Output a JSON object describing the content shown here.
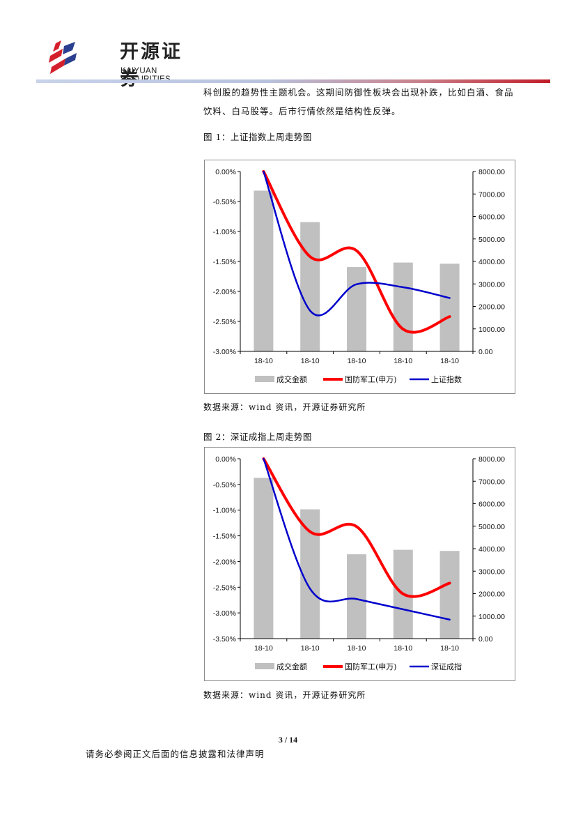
{
  "header": {
    "logo_cn": "开源证券",
    "logo_en": "KAIYUAN SECURITIES",
    "colors": {
      "logo_red": "#d4202c",
      "logo_blue": "#2a3f8f"
    }
  },
  "body": {
    "line1": "科创股的趋势性主题机会。这期间防御性板块会出现补跌，比如白酒、食品",
    "line2": "饮料、白马股等。后市行情依然是结构性反弹。"
  },
  "figure1": {
    "title": "图 1：上证指数上周走势图",
    "source": "数据来源：wind 资讯，开源证券研究所"
  },
  "figure2": {
    "title": "图 2：深证成指上周走势图",
    "source": "数据来源：wind 资讯，开源证券研究所"
  },
  "chart_data": [
    {
      "type": "bar",
      "categories": [
        "18-10",
        "18-10",
        "18-10",
        "18-10",
        "18-10"
      ],
      "y_left": {
        "min": -3.0,
        "max": 0.0,
        "step": 0.5,
        "ticks": [
          "0.00%",
          "-0.50%",
          "-1.00%",
          "-1.50%",
          "-2.00%",
          "-2.50%",
          "-3.00%"
        ]
      },
      "y_right": {
        "min": 0,
        "max": 8000,
        "step": 1000,
        "ticks": [
          "8000.00",
          "7000.00",
          "6000.00",
          "5000.00",
          "4000.00",
          "3000.00",
          "2000.00",
          "1000.00",
          "0.00"
        ]
      },
      "series": [
        {
          "name": "成交金额",
          "kind": "bar",
          "axis": "right",
          "color": "#c0c0c0",
          "values": [
            7150,
            5750,
            3750,
            3950,
            3900
          ]
        },
        {
          "name": "国防军工(申万)",
          "kind": "line",
          "axis": "left",
          "color": "#ff0000",
          "values": [
            0.0,
            -1.42,
            -1.32,
            -2.63,
            -2.42
          ]
        },
        {
          "name": "上证指数",
          "kind": "line",
          "axis": "left",
          "color": "#0000cc",
          "values": [
            0.0,
            -2.32,
            -1.88,
            -1.93,
            -2.11
          ]
        }
      ],
      "grid": false,
      "legend": "bottom"
    },
    {
      "type": "bar",
      "categories": [
        "18-10",
        "18-10",
        "18-10",
        "18-10",
        "18-10"
      ],
      "y_left": {
        "min": -3.5,
        "max": 0.0,
        "step": 0.5,
        "ticks": [
          "0.00%",
          "-0.50%",
          "-1.00%",
          "-1.50%",
          "-2.00%",
          "-2.50%",
          "-3.00%",
          "-3.50%"
        ]
      },
      "y_right": {
        "min": 0,
        "max": 8000,
        "step": 1000,
        "ticks": [
          "8000.00",
          "7000.00",
          "6000.00",
          "5000.00",
          "4000.00",
          "3000.00",
          "2000.00",
          "1000.00",
          "0.00"
        ]
      },
      "series": [
        {
          "name": "成交金额",
          "kind": "bar",
          "axis": "right",
          "color": "#c0c0c0",
          "values": [
            7150,
            5750,
            3750,
            3950,
            3900
          ]
        },
        {
          "name": "国防军工(申万)",
          "kind": "line",
          "axis": "left",
          "color": "#ff0000",
          "values": [
            0.0,
            -1.42,
            -1.32,
            -2.63,
            -2.42
          ]
        },
        {
          "name": "深证成指",
          "kind": "line",
          "axis": "left",
          "color": "#0000cc",
          "values": [
            0.0,
            -2.53,
            -2.73,
            -2.93,
            -3.13
          ]
        }
      ],
      "grid": false,
      "legend": "bottom"
    }
  ],
  "footer": {
    "page": "3 / 14",
    "disclaimer": "请务必参阅正文后面的信息披露和法律声明"
  }
}
